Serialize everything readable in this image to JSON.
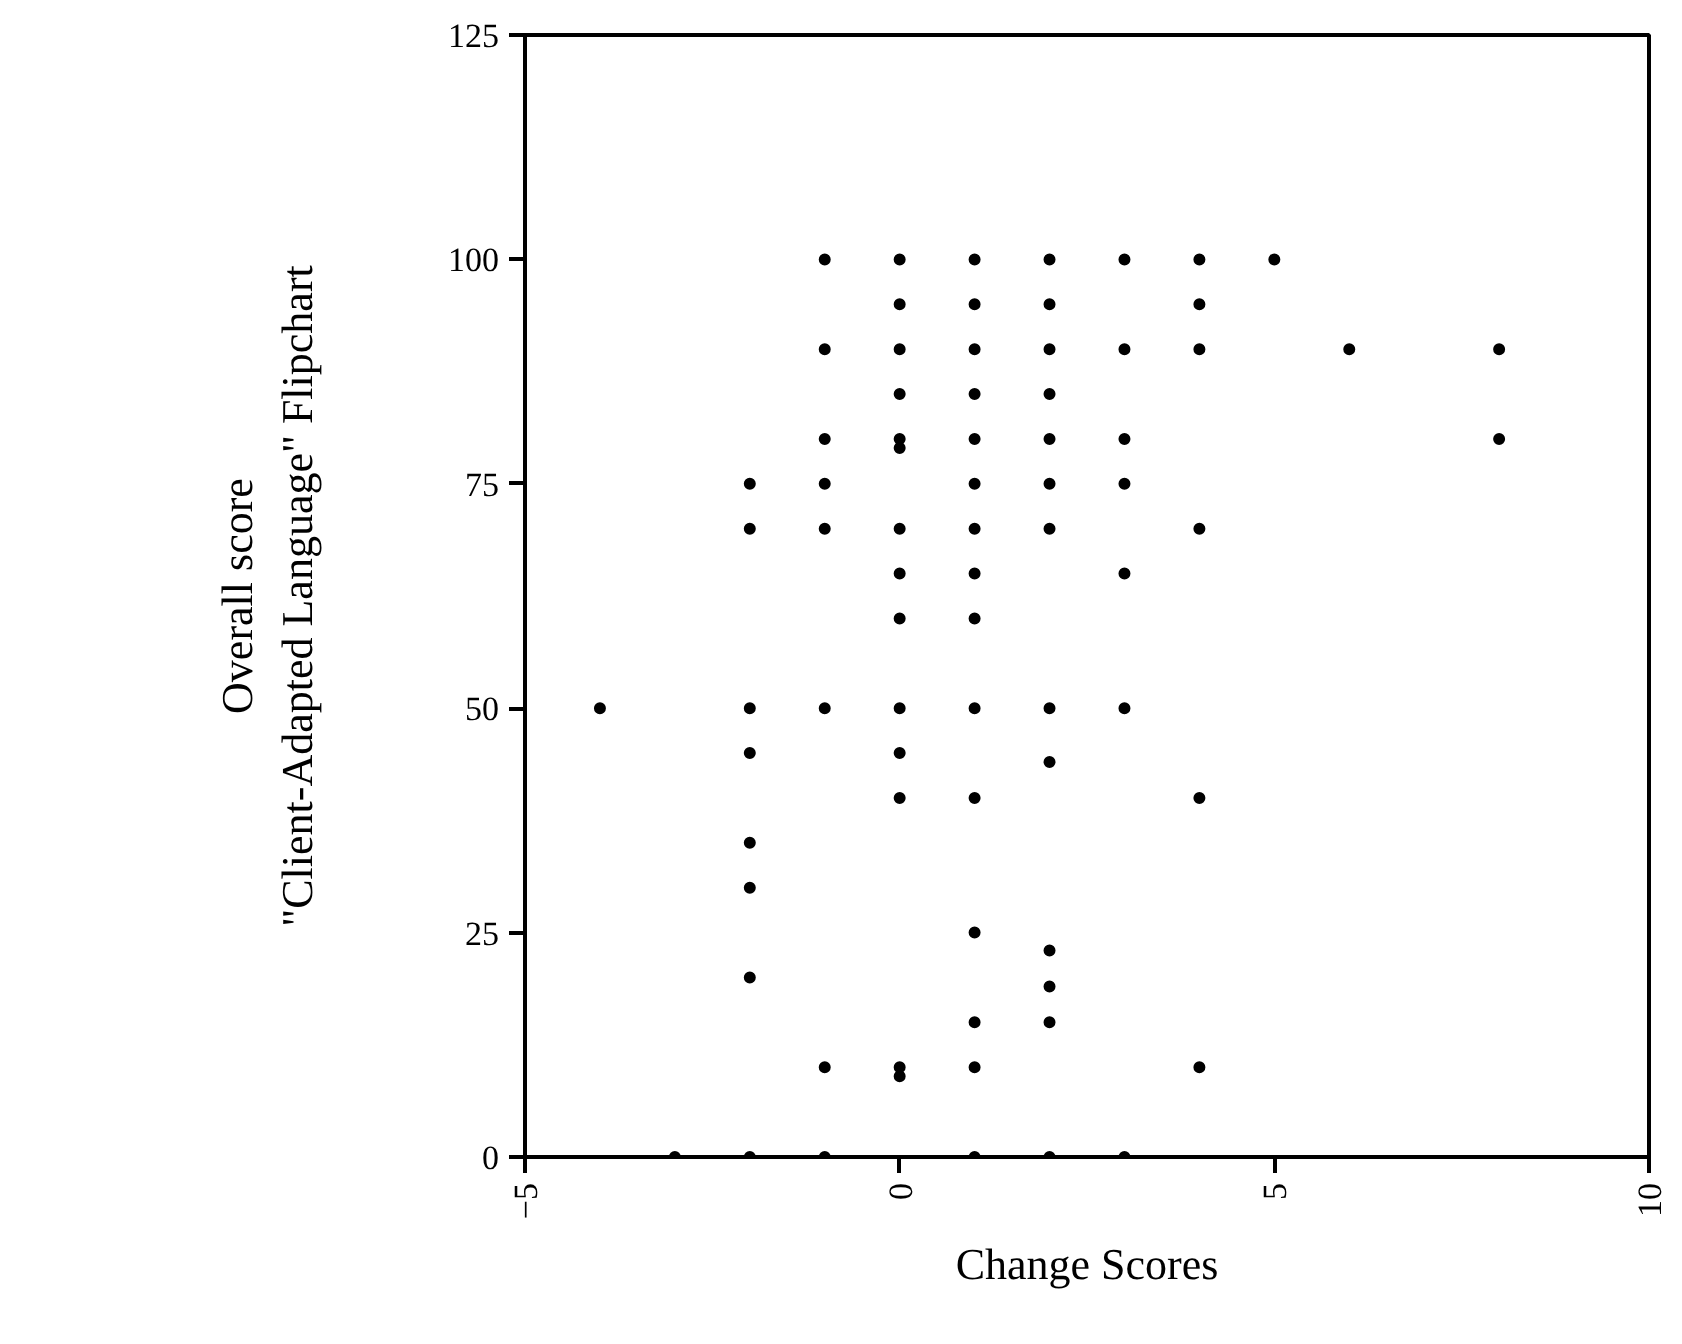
{
  "chart_data": {
    "type": "scatter",
    "xlabel": "Change Scores",
    "ylabel": "Overall score\n\"Client-Adapted Language\" Flipchart",
    "xlim": [
      -5,
      10
    ],
    "ylim": [
      0,
      125
    ],
    "xticks": [
      -5,
      0,
      5,
      10
    ],
    "yticks": [
      0,
      25,
      50,
      75,
      100,
      125
    ],
    "grid": false,
    "marker": "circle",
    "series": [
      {
        "color": "#000000",
        "x": [
          -4,
          -3,
          -2,
          -2,
          -2,
          -2,
          -2,
          -2,
          -2,
          -2,
          -1,
          -1,
          -1,
          -1,
          -1,
          -1,
          -1,
          -1,
          0,
          0,
          0,
          0,
          0,
          0,
          0,
          0,
          0,
          0,
          0,
          0,
          0,
          0,
          1,
          1,
          1,
          1,
          1,
          1,
          1,
          1,
          1,
          1,
          1,
          1,
          1,
          1,
          1,
          2,
          2,
          2,
          2,
          2,
          2,
          2,
          2,
          2,
          2,
          2,
          2,
          2,
          3,
          3,
          3,
          3,
          3,
          3,
          3,
          4,
          4,
          4,
          4,
          4,
          4,
          5,
          6,
          8,
          8
        ],
        "values": [
          50,
          0,
          75,
          70,
          50,
          45,
          35,
          30,
          20,
          0,
          100,
          90,
          80,
          75,
          70,
          50,
          10,
          0,
          100,
          95,
          90,
          85,
          80,
          79,
          70,
          65,
          60,
          50,
          45,
          40,
          10,
          9,
          100,
          95,
          90,
          85,
          80,
          75,
          70,
          65,
          60,
          50,
          40,
          25,
          15,
          10,
          0,
          100,
          95,
          90,
          85,
          80,
          75,
          70,
          50,
          44,
          23,
          19,
          15,
          0,
          100,
          90,
          80,
          75,
          65,
          50,
          0,
          100,
          95,
          90,
          70,
          40,
          10,
          100,
          90,
          90,
          80
        ]
      }
    ]
  }
}
